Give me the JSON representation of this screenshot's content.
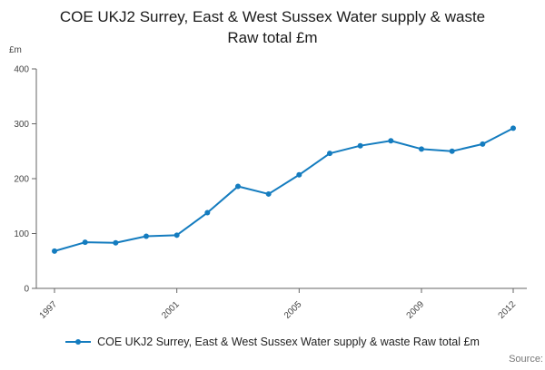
{
  "title": "COE UKJ2 Surrey, East & West Sussex Water supply & waste Raw total £m",
  "y_unit_label": "£m",
  "legend_label": "COE UKJ2 Surrey, East & West Sussex Water supply & waste Raw total £m",
  "source_label": "Source:",
  "accent_color": "#147cbf",
  "chart_data": {
    "type": "line",
    "title": "COE UKJ2 Surrey, East & West Sussex Water supply & waste Raw total £m",
    "xlabel": "",
    "ylabel": "£m",
    "ylim": [
      0,
      400
    ],
    "yticks": [
      0,
      100,
      200,
      300,
      400
    ],
    "x": [
      1997,
      1998,
      1999,
      2000,
      2001,
      2002,
      2003,
      2004,
      2005,
      2006,
      2007,
      2008,
      2009,
      2010,
      2011,
      2012
    ],
    "xticks": [
      1997,
      2001,
      2005,
      2009,
      2012
    ],
    "grid": false,
    "legend_position": "bottom",
    "series": [
      {
        "name": "COE UKJ2 Surrey, East & West Sussex Water supply & waste Raw total £m",
        "values": [
          68,
          84,
          83,
          95,
          97,
          138,
          186,
          172,
          207,
          246,
          260,
          269,
          254,
          250,
          263,
          292
        ]
      }
    ]
  }
}
